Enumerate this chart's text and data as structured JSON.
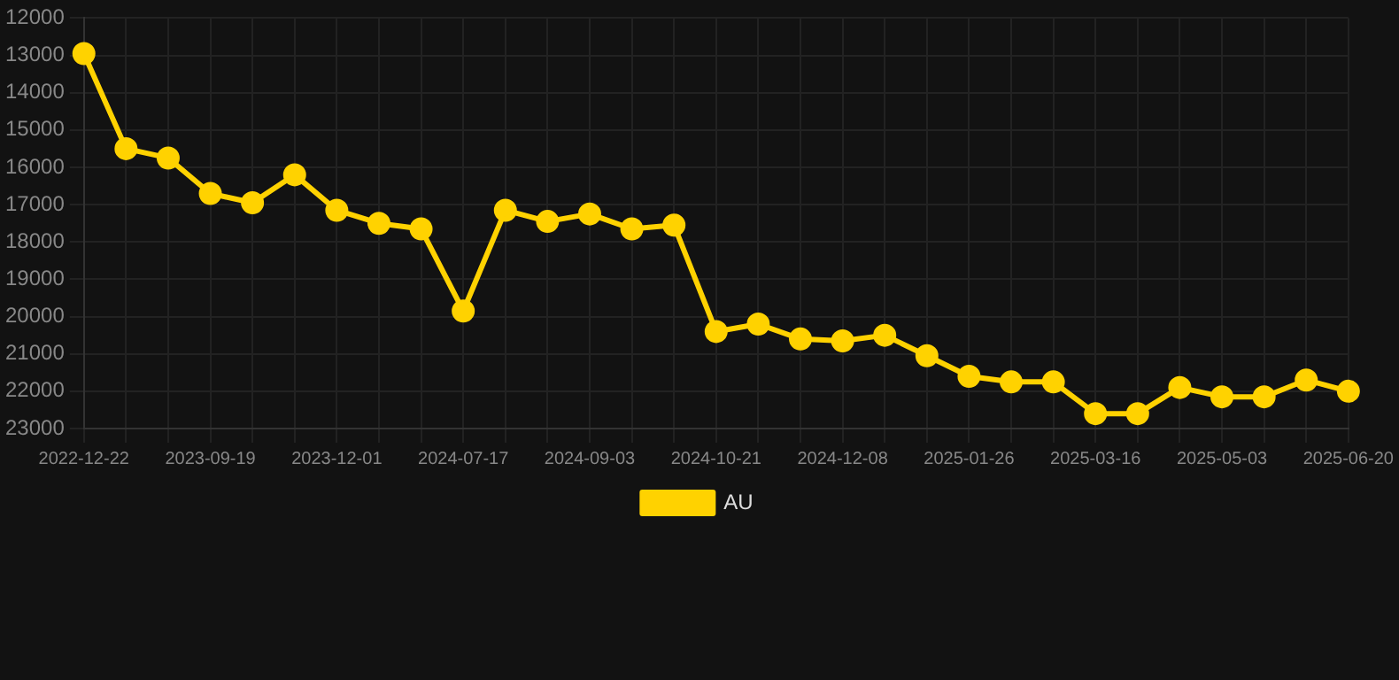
{
  "chart_data": {
    "type": "line",
    "categories": [
      "2022-12-22",
      null,
      null,
      "2023-09-19",
      null,
      null,
      "2023-12-01",
      null,
      null,
      "2024-07-17",
      null,
      null,
      "2024-09-03",
      null,
      null,
      "2024-10-21",
      null,
      null,
      "2024-12-08",
      null,
      null,
      "2025-01-26",
      null,
      null,
      "2025-03-16",
      null,
      null,
      "2025-05-03",
      null,
      null,
      "2025-06-20"
    ],
    "series": [
      {
        "name": "AU",
        "color": "#ffd200",
        "values": [
          12950,
          15500,
          15750,
          16700,
          16950,
          16200,
          17150,
          17500,
          17650,
          19850,
          17150,
          17450,
          17250,
          17650,
          17550,
          20400,
          20200,
          20600,
          20650,
          20500,
          21050,
          21600,
          21750,
          21750,
          22600,
          22600,
          21900,
          22150,
          22150,
          21700,
          22000
        ]
      }
    ],
    "ylim": [
      23000,
      12000
    ],
    "yticks": [
      12000,
      13000,
      14000,
      15000,
      16000,
      17000,
      18000,
      19000,
      20000,
      21000,
      22000,
      23000
    ],
    "grid": true,
    "legend": "bottom",
    "marker": "circle",
    "line_style": "solid"
  }
}
